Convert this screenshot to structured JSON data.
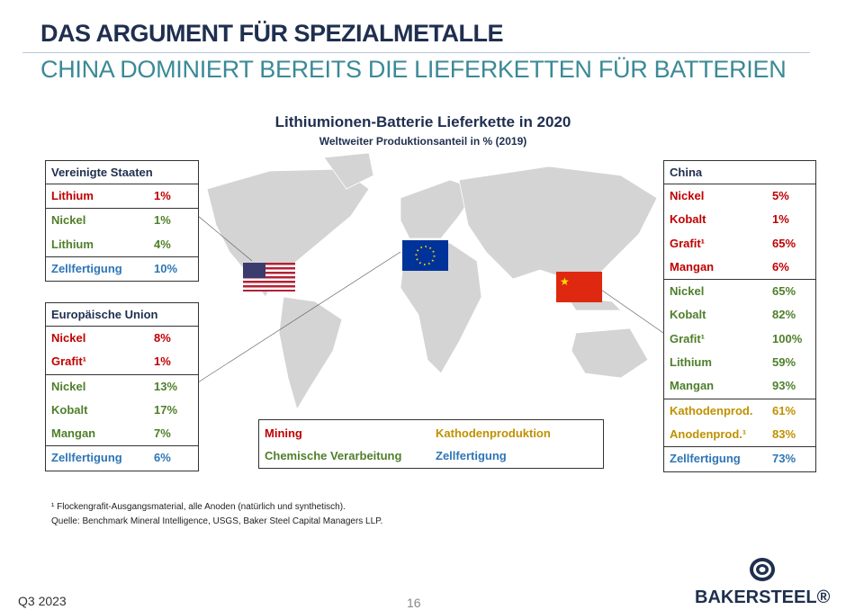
{
  "header": {
    "title": "DAS ARGUMENT FÜR SPEZIALMETALLE",
    "subtitle": "CHINA DOMINIERT BEREITS DIE LIEFERKETTEN FÜR BATTERIEN"
  },
  "chart": {
    "title": "Lithiumionen-Batterie Lieferkette in 2020",
    "subtitle": "Weltweiter Produktionsanteil in % (2019)"
  },
  "colors": {
    "mining": "#c00000",
    "chemical": "#4e7f2a",
    "cathode": "#c09000",
    "cell": "#2e75b6"
  },
  "usa": {
    "title": "Vereinigte Staaten",
    "rows": [
      {
        "label": "Lithium",
        "value": "1%",
        "cat": "red"
      },
      {
        "label": "Nickel",
        "value": "1%",
        "cat": "grn"
      },
      {
        "label": "Lithium",
        "value": "4%",
        "cat": "grn"
      },
      {
        "label": "Zellfertigung",
        "value": "10%",
        "cat": "blue"
      }
    ]
  },
  "eu": {
    "title": "Europäische Union",
    "rows": [
      {
        "label": "Nickel",
        "value": "8%",
        "cat": "red"
      },
      {
        "label": "Grafit¹",
        "value": "1%",
        "cat": "red"
      },
      {
        "label": "Nickel",
        "value": "13%",
        "cat": "grn"
      },
      {
        "label": "Kobalt",
        "value": "17%",
        "cat": "grn"
      },
      {
        "label": "Mangan",
        "value": "7%",
        "cat": "grn"
      },
      {
        "label": "Zellfertigung",
        "value": "6%",
        "cat": "blue"
      }
    ]
  },
  "china": {
    "title": "China",
    "rows": [
      {
        "label": "Nickel",
        "value": "5%",
        "cat": "red"
      },
      {
        "label": "Kobalt",
        "value": "1%",
        "cat": "red"
      },
      {
        "label": "Grafit¹",
        "value": "65%",
        "cat": "red"
      },
      {
        "label": "Mangan",
        "value": "6%",
        "cat": "red"
      },
      {
        "label": "Nickel",
        "value": "65%",
        "cat": "grn"
      },
      {
        "label": "Kobalt",
        "value": "82%",
        "cat": "grn"
      },
      {
        "label": "Grafit¹",
        "value": "100%",
        "cat": "grn"
      },
      {
        "label": "Lithium",
        "value": "59%",
        "cat": "grn"
      },
      {
        "label": "Mangan",
        "value": "93%",
        "cat": "grn"
      },
      {
        "label": "Kathodenprod.",
        "value": "61%",
        "cat": "gold"
      },
      {
        "label": "Anodenprod.¹",
        "value": "83%",
        "cat": "gold"
      },
      {
        "label": "Zellfertigung",
        "value": "73%",
        "cat": "blue"
      }
    ]
  },
  "legend": {
    "mining": "Mining",
    "chemical": "Chemische Verarbeitung",
    "cathode": "Kathodenproduktion",
    "cell": "Zellfertigung"
  },
  "footnote": {
    "line1": "¹ Flockengrafit-Ausgangsmaterial, alle Anoden (natürlich und synthetisch).",
    "line2": "Quelle: Benchmark Mineral Intelligence, USGS, Baker Steel Capital Managers LLP."
  },
  "footer": {
    "quarter": "Q3 2023",
    "page": "16",
    "logo": "BAKERSTEEL®"
  }
}
